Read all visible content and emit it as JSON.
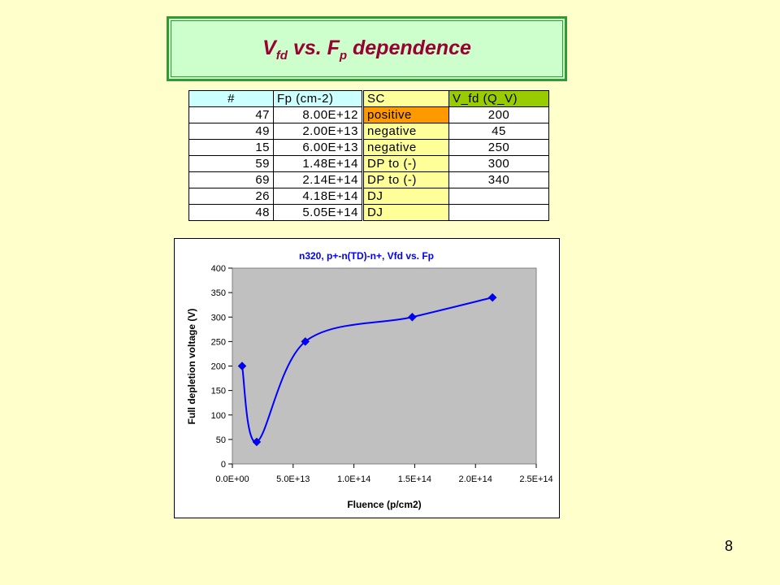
{
  "slide": {
    "title_main": "V",
    "title_sub1": "fd",
    "title_mid": " vs. F",
    "title_sub2": "p",
    "title_end": " dependence",
    "page_number": "8"
  },
  "table": {
    "headers": [
      "#",
      "Fp (cm-2)",
      "SC",
      "V_fd (Q_V)"
    ],
    "rows": [
      [
        "47",
        "8.00E+12",
        "positive",
        "200"
      ],
      [
        "49",
        "2.00E+13",
        "negative",
        "45"
      ],
      [
        "15",
        "6.00E+13",
        "negative",
        "250"
      ],
      [
        "59",
        "1.48E+14",
        "DP to (-)",
        "300"
      ],
      [
        "69",
        "2.14E+14",
        "DP to (-)",
        "340"
      ],
      [
        "26",
        "4.18E+14",
        "DJ",
        ""
      ],
      [
        "48",
        "5.05E+14",
        "DJ",
        ""
      ]
    ]
  },
  "chart_data": {
    "type": "scatter",
    "title": "n320, p+-n(TD)-n+, Vfd vs. Fp",
    "xlabel": "Fluence (p/cm2)",
    "ylabel": "Full depletion voltage (V)",
    "xlim": [
      0,
      250000000000000.0
    ],
    "ylim": [
      0,
      400
    ],
    "xticks": [
      0,
      50000000000000.0,
      100000000000000.0,
      150000000000000.0,
      200000000000000.0,
      250000000000000.0
    ],
    "xtick_labels": [
      "0.0E+00",
      "5.0E+13",
      "1.0E+14",
      "1.5E+14",
      "2.0E+14",
      "2.5E+14"
    ],
    "yticks": [
      0,
      50,
      100,
      150,
      200,
      250,
      300,
      350,
      400
    ],
    "ytick_labels": [
      "0",
      "50",
      "100",
      "150",
      "200",
      "250",
      "300",
      "350",
      "400"
    ],
    "series": [
      {
        "x": [
          8000000000000.0,
          20000000000000.0,
          60000000000000.0,
          148000000000000.0,
          214000000000000.0
        ],
        "y": [
          200,
          45,
          250,
          300,
          340
        ]
      }
    ],
    "smooth_line": true,
    "grid": false,
    "plot_bg": "#C0C0C0",
    "series_color": "#0000FF",
    "title_color": "#0000FF"
  }
}
